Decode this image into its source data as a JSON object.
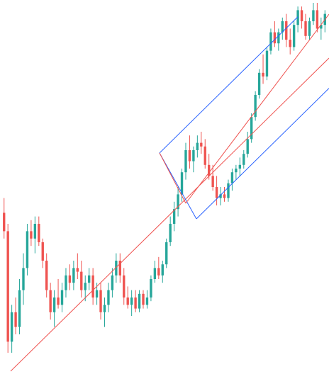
{
  "chart_data": {
    "type": "candlestick",
    "title": "",
    "xlabel": "",
    "ylabel": "",
    "grid": false,
    "legend": "none",
    "colors": {
      "bullish": "#26a69a",
      "bearish": "#ef5350",
      "trendline": "#ef5350",
      "channel": "#2962ff",
      "background": "#ffffff"
    },
    "ylim": [
      0,
      100
    ],
    "candles": [
      {
        "o": 43,
        "h": 47,
        "l": 36,
        "c": 38
      },
      {
        "o": 38,
        "h": 40,
        "l": 5,
        "c": 8
      },
      {
        "o": 8,
        "h": 18,
        "l": 5,
        "c": 16
      },
      {
        "o": 16,
        "h": 20,
        "l": 10,
        "c": 12
      },
      {
        "o": 12,
        "h": 25,
        "l": 10,
        "c": 22
      },
      {
        "o": 22,
        "h": 32,
        "l": 18,
        "c": 28
      },
      {
        "o": 28,
        "h": 40,
        "l": 26,
        "c": 38
      },
      {
        "o": 38,
        "h": 41,
        "l": 34,
        "c": 36
      },
      {
        "o": 36,
        "h": 42,
        "l": 32,
        "c": 40
      },
      {
        "o": 40,
        "h": 42,
        "l": 34,
        "c": 35
      },
      {
        "o": 35,
        "h": 36,
        "l": 28,
        "c": 30
      },
      {
        "o": 30,
        "h": 32,
        "l": 20,
        "c": 22
      },
      {
        "o": 22,
        "h": 24,
        "l": 14,
        "c": 16
      },
      {
        "o": 16,
        "h": 22,
        "l": 12,
        "c": 20
      },
      {
        "o": 20,
        "h": 25,
        "l": 17,
        "c": 18
      },
      {
        "o": 18,
        "h": 24,
        "l": 16,
        "c": 22
      },
      {
        "o": 22,
        "h": 28,
        "l": 20,
        "c": 26
      },
      {
        "o": 26,
        "h": 29,
        "l": 22,
        "c": 24
      },
      {
        "o": 24,
        "h": 30,
        "l": 22,
        "c": 28
      },
      {
        "o": 28,
        "h": 32,
        "l": 25,
        "c": 27
      },
      {
        "o": 27,
        "h": 30,
        "l": 20,
        "c": 22
      },
      {
        "o": 22,
        "h": 26,
        "l": 19,
        "c": 24
      },
      {
        "o": 24,
        "h": 28,
        "l": 22,
        "c": 26
      },
      {
        "o": 26,
        "h": 28,
        "l": 18,
        "c": 20
      },
      {
        "o": 20,
        "h": 24,
        "l": 18,
        "c": 22
      },
      {
        "o": 22,
        "h": 24,
        "l": 14,
        "c": 16
      },
      {
        "o": 16,
        "h": 20,
        "l": 12,
        "c": 18
      },
      {
        "o": 18,
        "h": 24,
        "l": 16,
        "c": 22
      },
      {
        "o": 22,
        "h": 28,
        "l": 20,
        "c": 26
      },
      {
        "o": 26,
        "h": 32,
        "l": 24,
        "c": 30
      },
      {
        "o": 30,
        "h": 32,
        "l": 24,
        "c": 26
      },
      {
        "o": 26,
        "h": 28,
        "l": 18,
        "c": 20
      },
      {
        "o": 20,
        "h": 23,
        "l": 17,
        "c": 18
      },
      {
        "o": 18,
        "h": 22,
        "l": 15,
        "c": 20
      },
      {
        "o": 20,
        "h": 22,
        "l": 16,
        "c": 17
      },
      {
        "o": 17,
        "h": 22,
        "l": 16,
        "c": 21
      },
      {
        "o": 21,
        "h": 22,
        "l": 17,
        "c": 18
      },
      {
        "o": 18,
        "h": 22,
        "l": 17,
        "c": 20
      },
      {
        "o": 20,
        "h": 26,
        "l": 19,
        "c": 25
      },
      {
        "o": 25,
        "h": 30,
        "l": 24,
        "c": 28
      },
      {
        "o": 28,
        "h": 31,
        "l": 25,
        "c": 26
      },
      {
        "o": 26,
        "h": 30,
        "l": 24,
        "c": 29
      },
      {
        "o": 29,
        "h": 36,
        "l": 28,
        "c": 35
      },
      {
        "o": 35,
        "h": 42,
        "l": 34,
        "c": 40
      },
      {
        "o": 40,
        "h": 46,
        "l": 38,
        "c": 44
      },
      {
        "o": 44,
        "h": 50,
        "l": 42,
        "c": 48
      },
      {
        "o": 48,
        "h": 55,
        "l": 46,
        "c": 54
      },
      {
        "o": 54,
        "h": 62,
        "l": 52,
        "c": 60
      },
      {
        "o": 60,
        "h": 64,
        "l": 55,
        "c": 57
      },
      {
        "o": 57,
        "h": 61,
        "l": 54,
        "c": 60
      },
      {
        "o": 60,
        "h": 64,
        "l": 58,
        "c": 62
      },
      {
        "o": 62,
        "h": 65,
        "l": 59,
        "c": 61
      },
      {
        "o": 61,
        "h": 63,
        "l": 55,
        "c": 56
      },
      {
        "o": 56,
        "h": 59,
        "l": 52,
        "c": 53
      },
      {
        "o": 53,
        "h": 56,
        "l": 49,
        "c": 50
      },
      {
        "o": 50,
        "h": 53,
        "l": 45,
        "c": 47
      },
      {
        "o": 47,
        "h": 50,
        "l": 45,
        "c": 48
      },
      {
        "o": 48,
        "h": 50,
        "l": 46,
        "c": 47
      },
      {
        "o": 47,
        "h": 52,
        "l": 46,
        "c": 51
      },
      {
        "o": 51,
        "h": 55,
        "l": 49,
        "c": 54
      },
      {
        "o": 54,
        "h": 56,
        "l": 52,
        "c": 55
      },
      {
        "o": 55,
        "h": 58,
        "l": 53,
        "c": 56
      },
      {
        "o": 56,
        "h": 60,
        "l": 55,
        "c": 59
      },
      {
        "o": 59,
        "h": 65,
        "l": 58,
        "c": 63
      },
      {
        "o": 63,
        "h": 70,
        "l": 62,
        "c": 69
      },
      {
        "o": 69,
        "h": 76,
        "l": 68,
        "c": 75
      },
      {
        "o": 75,
        "h": 82,
        "l": 74,
        "c": 81
      },
      {
        "o": 81,
        "h": 86,
        "l": 78,
        "c": 80
      },
      {
        "o": 80,
        "h": 88,
        "l": 79,
        "c": 87
      },
      {
        "o": 87,
        "h": 93,
        "l": 86,
        "c": 92
      },
      {
        "o": 92,
        "h": 95,
        "l": 88,
        "c": 89
      },
      {
        "o": 89,
        "h": 93,
        "l": 87,
        "c": 92
      },
      {
        "o": 92,
        "h": 96,
        "l": 90,
        "c": 95
      },
      {
        "o": 95,
        "h": 97,
        "l": 88,
        "c": 90
      },
      {
        "o": 90,
        "h": 93,
        "l": 86,
        "c": 88
      },
      {
        "o": 88,
        "h": 95,
        "l": 87,
        "c": 94
      },
      {
        "o": 94,
        "h": 99,
        "l": 92,
        "c": 98
      },
      {
        "o": 98,
        "h": 99,
        "l": 93,
        "c": 95
      },
      {
        "o": 95,
        "h": 97,
        "l": 90,
        "c": 91
      },
      {
        "o": 91,
        "h": 96,
        "l": 90,
        "c": 95
      },
      {
        "o": 95,
        "h": 100,
        "l": 94,
        "c": 98
      },
      {
        "o": 98,
        "h": 100,
        "l": 92,
        "c": 93
      },
      {
        "o": 93,
        "h": 96,
        "l": 90,
        "c": 94
      },
      {
        "o": 94,
        "h": 98,
        "l": 92,
        "c": 97
      }
    ],
    "trendline": {
      "from": {
        "bar": 0,
        "price": 0
      },
      "to": {
        "bar": 88,
        "price": 100
      }
    },
    "channel": {
      "base_start": {
        "bar": 44,
        "price": 47.5
      },
      "base_end": {
        "bar": 46,
        "price": 49
      },
      "top_end_price": 100,
      "bottom_end_price": 84,
      "ends_at_bar": 88
    }
  }
}
